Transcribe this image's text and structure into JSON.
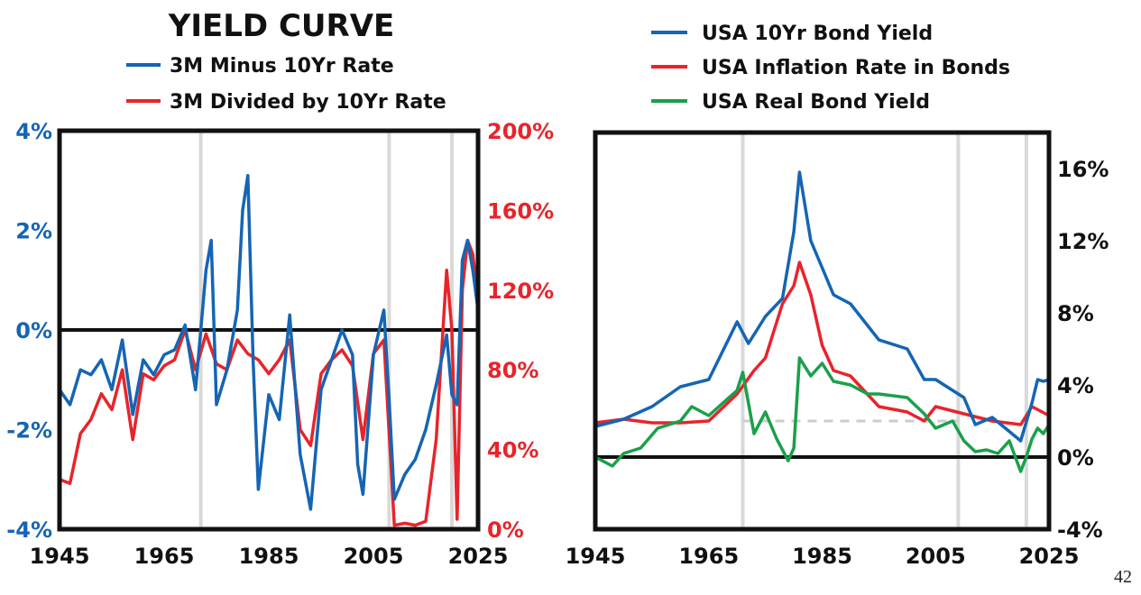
{
  "page_number": "42",
  "colors": {
    "blue": "#1565b3",
    "red": "#e8242b",
    "green": "#1aa04a",
    "black": "#111111",
    "recession_band": "#d9d9d9",
    "dashed_line": "#cccccc"
  },
  "chart_data": [
    {
      "type": "line",
      "title": "YIELD CURVE",
      "x_ticks": [
        "1945",
        "1965",
        "1985",
        "2005",
        "2025"
      ],
      "xlim": [
        1945,
        2025
      ],
      "y_left_ticks": [
        "4%",
        "2%",
        "0%",
        "-2%",
        "-4%"
      ],
      "ylim_left": [
        -4,
        4
      ],
      "y_right_ticks": [
        "200%",
        "160%",
        "120%",
        "80%",
        "40%",
        "0%"
      ],
      "ylim_right": [
        0,
        200
      ],
      "recession_bands": [
        1972,
        2008,
        2020
      ],
      "reference_line": {
        "axis": "left",
        "value": 0
      },
      "legend_position": "top",
      "series": [
        {
          "name": "3M Minus 10Yr Rate",
          "axis": "left",
          "color": "blue",
          "x": [
            1945,
            1947,
            1949,
            1951,
            1953,
            1955,
            1957,
            1959,
            1961,
            1963,
            1965,
            1967,
            1969,
            1971,
            1973,
            1974,
            1975,
            1977,
            1979,
            1980,
            1981,
            1982,
            1983,
            1985,
            1987,
            1989,
            1991,
            1993,
            1995,
            1997,
            1999,
            2001,
            2002,
            2003,
            2005,
            2007,
            2008,
            2009,
            2011,
            2013,
            2015,
            2017,
            2019,
            2020,
            2021,
            2022,
            2023,
            2024,
            2025
          ],
          "y": [
            -1.2,
            -1.5,
            -0.8,
            -0.9,
            -0.6,
            -1.2,
            -0.2,
            -1.7,
            -0.6,
            -0.9,
            -0.5,
            -0.4,
            0.1,
            -1.2,
            1.2,
            1.8,
            -1.5,
            -0.8,
            0.4,
            2.4,
            3.1,
            -0.6,
            -3.2,
            -1.3,
            -1.8,
            0.3,
            -2.5,
            -3.6,
            -1.2,
            -0.6,
            0.0,
            -0.5,
            -2.7,
            -3.3,
            -0.5,
            0.4,
            -1.4,
            -3.4,
            -2.9,
            -2.6,
            -2.0,
            -1.1,
            -0.1,
            -1.3,
            -1.5,
            1.4,
            1.8,
            1.2,
            0.4
          ]
        },
        {
          "name": "3M Divided by 10Yr Rate",
          "axis": "right",
          "color": "red",
          "x": [
            1945,
            1947,
            1949,
            1951,
            1953,
            1955,
            1957,
            1959,
            1961,
            1963,
            1965,
            1967,
            1969,
            1971,
            1973,
            1975,
            1977,
            1979,
            1981,
            1983,
            1985,
            1987,
            1989,
            1991,
            1993,
            1995,
            1997,
            1999,
            2001,
            2003,
            2005,
            2007,
            2009,
            2011,
            2013,
            2015,
            2017,
            2019,
            2020,
            2021,
            2022,
            2023,
            2024,
            2025
          ],
          "y": [
            25,
            23,
            48,
            55,
            68,
            60,
            80,
            45,
            78,
            75,
            82,
            85,
            100,
            80,
            98,
            83,
            80,
            95,
            88,
            85,
            78,
            85,
            95,
            50,
            42,
            78,
            85,
            90,
            82,
            45,
            88,
            95,
            2,
            3,
            2,
            4,
            45,
            130,
            100,
            5,
            120,
            145,
            138,
            115
          ]
        }
      ]
    },
    {
      "type": "line",
      "title": "",
      "x_ticks": [
        "1945",
        "1965",
        "1985",
        "2005",
        "2025"
      ],
      "xlim": [
        1945,
        2025
      ],
      "y_ticks": [
        "16%",
        "12%",
        "8%",
        "4%",
        "0%",
        "-4%"
      ],
      "ylim": [
        -4,
        18
      ],
      "recession_bands": [
        1971,
        2009,
        2021
      ],
      "reference_line": {
        "value": 0
      },
      "dashed_line": {
        "value": 2,
        "x_from": 1971,
        "x_to": 2009
      },
      "legend_position": "top",
      "series": [
        {
          "name": "USA 10Yr Bond Yield",
          "color": "blue",
          "x": [
            1945,
            1950,
            1955,
            1960,
            1965,
            1970,
            1972,
            1975,
            1978,
            1980,
            1981,
            1983,
            1985,
            1987,
            1990,
            1995,
            2000,
            2003,
            2005,
            2008,
            2010,
            2012,
            2015,
            2020,
            2022,
            2023,
            2024,
            2025
          ],
          "y": [
            1.7,
            2.1,
            2.8,
            3.9,
            4.3,
            7.5,
            6.3,
            7.8,
            8.8,
            12.5,
            15.8,
            12.0,
            10.5,
            9.0,
            8.5,
            6.5,
            6.0,
            4.3,
            4.3,
            3.7,
            3.3,
            1.8,
            2.2,
            0.9,
            3.0,
            4.3,
            4.2,
            4.3
          ]
        },
        {
          "name": "USA Inflation Rate in Bonds",
          "color": "red",
          "x": [
            1945,
            1950,
            1955,
            1960,
            1965,
            1970,
            1973,
            1975,
            1978,
            1980,
            1981,
            1983,
            1985,
            1987,
            1990,
            1995,
            2000,
            2003,
            2005,
            2010,
            2015,
            2020,
            2022,
            2025
          ],
          "y": [
            1.9,
            2.1,
            1.9,
            1.9,
            2.0,
            3.5,
            4.8,
            5.5,
            8.5,
            9.5,
            10.8,
            9.0,
            6.2,
            4.8,
            4.5,
            2.8,
            2.5,
            2.0,
            2.8,
            2.4,
            2.0,
            1.8,
            2.8,
            2.3
          ]
        },
        {
          "name": "USA Real Bond Yield",
          "color": "green",
          "x": [
            1945,
            1948,
            1950,
            1953,
            1956,
            1960,
            1962,
            1965,
            1970,
            1971,
            1973,
            1975,
            1977,
            1979,
            1980,
            1981,
            1983,
            1985,
            1987,
            1990,
            1993,
            1995,
            2000,
            2003,
            2005,
            2008,
            2010,
            2012,
            2014,
            2016,
            2018,
            2020,
            2021,
            2022,
            2023,
            2024,
            2025
          ],
          "y": [
            0.0,
            -0.5,
            0.2,
            0.5,
            1.6,
            2.0,
            2.8,
            2.3,
            3.7,
            4.7,
            1.3,
            2.5,
            1.0,
            -0.2,
            0.5,
            5.5,
            4.5,
            5.2,
            4.2,
            4.0,
            3.5,
            3.5,
            3.3,
            2.4,
            1.6,
            2.0,
            0.9,
            0.3,
            0.4,
            0.2,
            0.9,
            -0.8,
            0.0,
            1.0,
            1.6,
            1.3,
            1.8
          ]
        }
      ]
    }
  ]
}
